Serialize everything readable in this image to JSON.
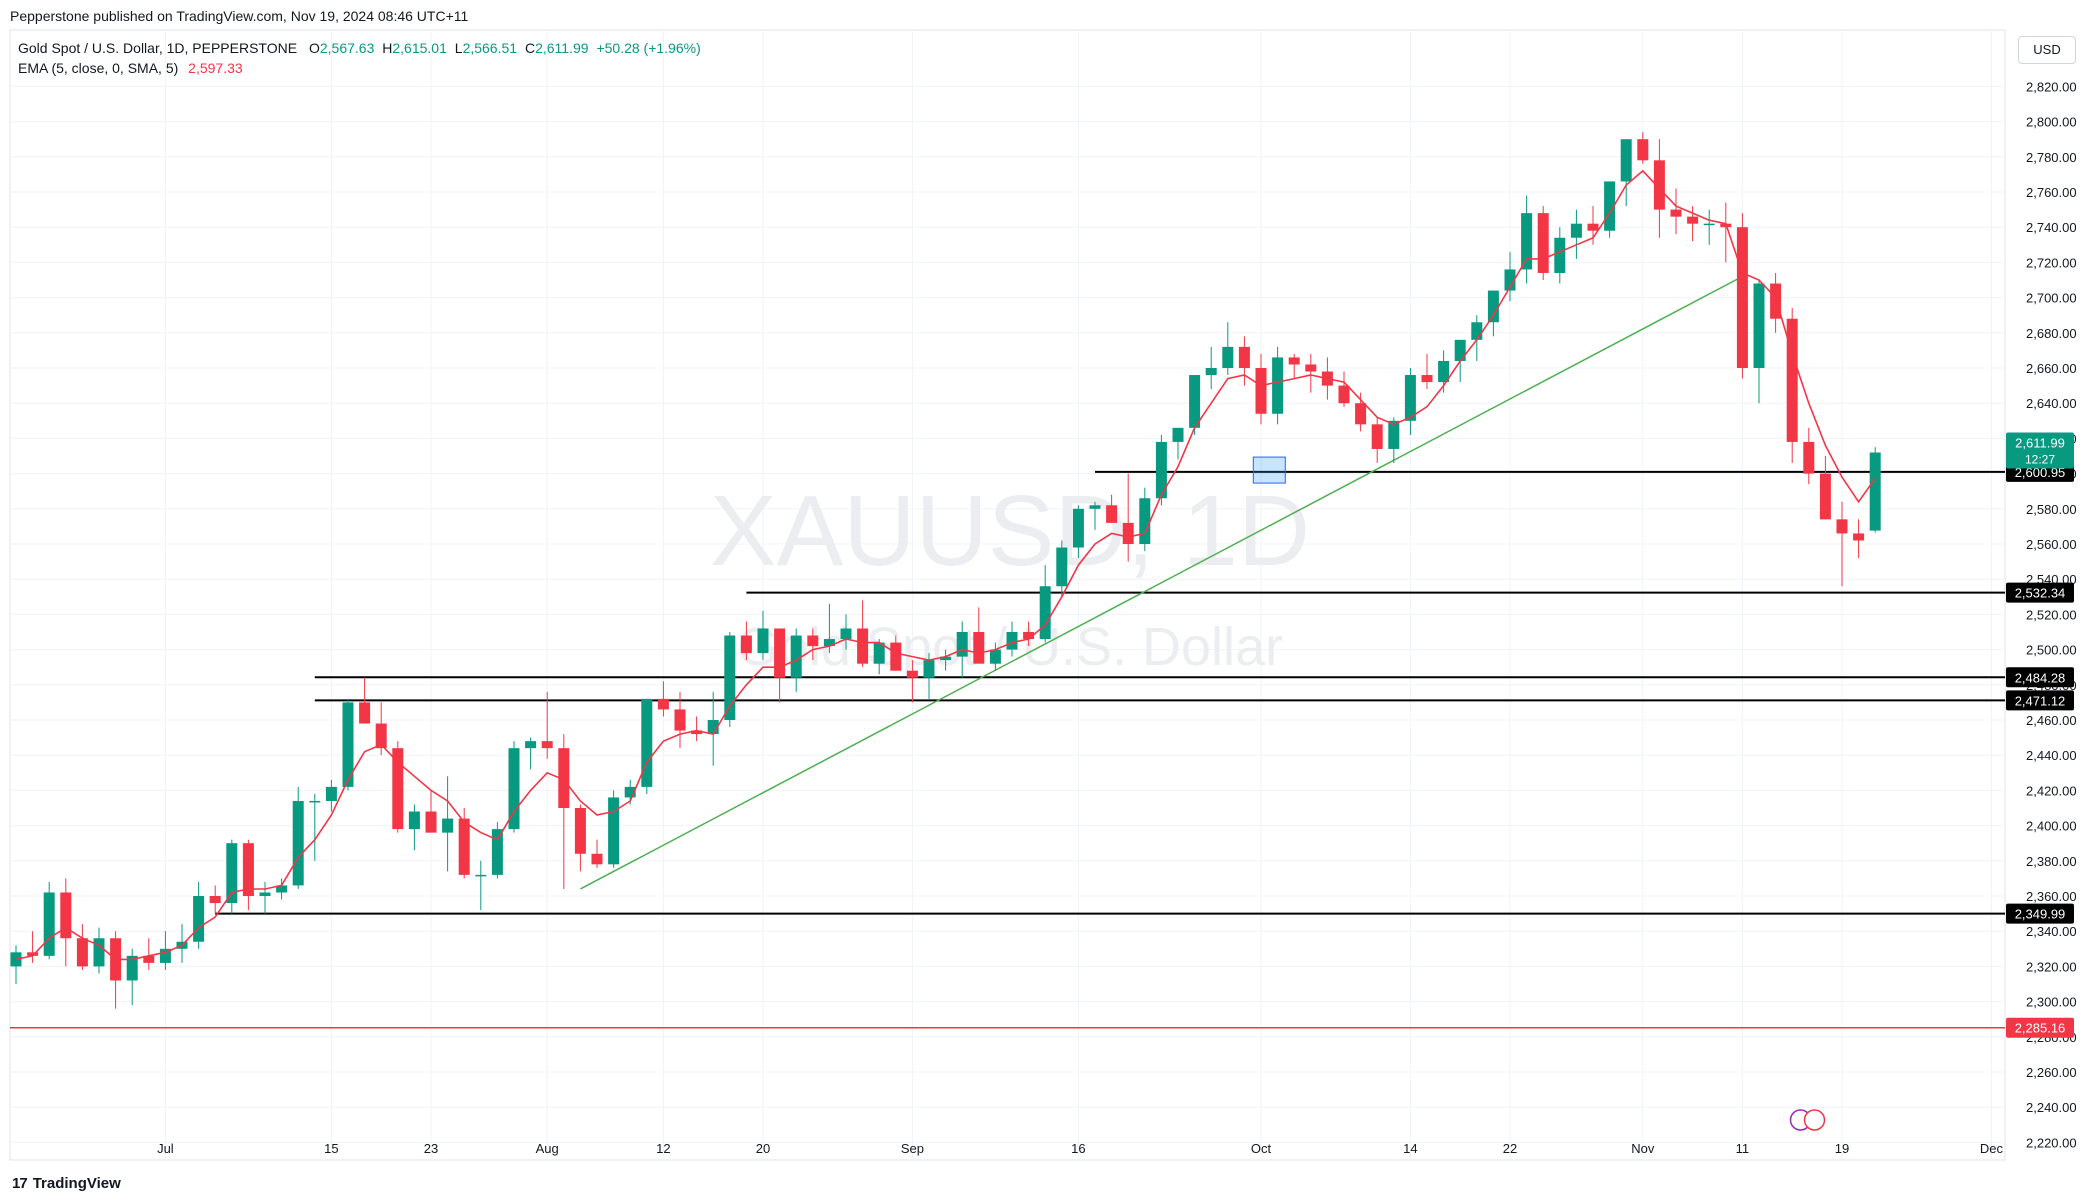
{
  "header": {
    "published": "Pepperstone published on TradingView.com, Nov 19, 2024 08:46 UTC+11"
  },
  "legend": {
    "symbol_line": "Gold Spot / U.S. Dollar, 1D, PEPPERSTONE",
    "o_label": "O",
    "o_value": "2,567.63",
    "h_label": "H",
    "h_value": "2,615.01",
    "l_label": "L",
    "l_value": "2,566.51",
    "c_label": "C",
    "c_value": "2,611.99",
    "change": "+50.28 (+1.96%)",
    "ema_label": "EMA (5, close, 0, SMA, 5)",
    "ema_value": "2,597.33"
  },
  "currency": "USD",
  "watermark": {
    "symbol": "XAUUSD, 1D",
    "name": "Gold Spot / U.S. Dollar"
  },
  "footer": {
    "logo_text": "TradingView"
  },
  "colors": {
    "up": "#089981",
    "down": "#f23645",
    "ema": "#f23645",
    "trend": "#4caf50",
    "level": "#000000",
    "red_level": "#f23645"
  },
  "chart_data": {
    "type": "candlestick",
    "y_ticks": [
      2220,
      2240,
      2260,
      2280,
      2300,
      2320,
      2340,
      2360,
      2380,
      2400,
      2420,
      2440,
      2460,
      2480,
      2500,
      2520,
      2540,
      2560,
      2580,
      2600,
      2620,
      2640,
      2660,
      2680,
      2700,
      2720,
      2740,
      2760,
      2780,
      2800,
      2820
    ],
    "y_tick_labels": [
      "2,220.00",
      "2,240.00",
      "2,260.00",
      "2,280.00",
      "2,300.00",
      "2,320.00",
      "2,340.00",
      "2,360.00",
      "2,380.00",
      "2,400.00",
      "2,420.00",
      "2,440.00",
      "2,460.00",
      "2,480.00",
      "2,500.00",
      "2,520.00",
      "2,540.00",
      "2,560.00",
      "2,580.00",
      "2,600.00",
      "2,620.00",
      "2,640.00",
      "2,660.00",
      "2,680.00",
      "2,700.00",
      "2,720.00",
      "2,740.00",
      "2,760.00",
      "2,780.00",
      "2,800.00",
      "2,820.00"
    ],
    "x_ticks": [
      {
        "label": "Jul",
        "i": 9
      },
      {
        "label": "15",
        "i": 19
      },
      {
        "label": "23",
        "i": 25
      },
      {
        "label": "Aug",
        "i": 32
      },
      {
        "label": "12",
        "i": 39
      },
      {
        "label": "20",
        "i": 45
      },
      {
        "label": "Sep",
        "i": 54
      },
      {
        "label": "16",
        "i": 64
      },
      {
        "label": "Oct",
        "i": 75
      },
      {
        "label": "14",
        "i": 84
      },
      {
        "label": "22",
        "i": 90
      },
      {
        "label": "Nov",
        "i": 98
      },
      {
        "label": "11",
        "i": 104
      },
      {
        "label": "19",
        "i": 110
      },
      {
        "label": "Dec",
        "i": 119
      }
    ],
    "ylim": [
      2210,
      2835
    ],
    "candles": [
      [
        2320,
        2332,
        2310,
        2328
      ],
      [
        2328,
        2340,
        2322,
        2326
      ],
      [
        2326,
        2368,
        2324,
        2362
      ],
      [
        2362,
        2370,
        2320,
        2336
      ],
      [
        2336,
        2344,
        2318,
        2320
      ],
      [
        2320,
        2342,
        2316,
        2336
      ],
      [
        2336,
        2340,
        2296,
        2312
      ],
      [
        2312,
        2330,
        2298,
        2326
      ],
      [
        2326,
        2336,
        2318,
        2322
      ],
      [
        2322,
        2340,
        2318,
        2330
      ],
      [
        2330,
        2344,
        2322,
        2334
      ],
      [
        2334,
        2368,
        2330,
        2360
      ],
      [
        2360,
        2366,
        2350,
        2356
      ],
      [
        2356,
        2392,
        2350,
        2390
      ],
      [
        2390,
        2392,
        2352,
        2360
      ],
      [
        2360,
        2368,
        2350,
        2362
      ],
      [
        2362,
        2370,
        2358,
        2366
      ],
      [
        2366,
        2422,
        2364,
        2414
      ],
      [
        2414,
        2418,
        2380,
        2414
      ],
      [
        2414,
        2426,
        2408,
        2422
      ],
      [
        2422,
        2472,
        2420,
        2470
      ],
      [
        2470,
        2484,
        2458,
        2458
      ],
      [
        2458,
        2470,
        2440,
        2444
      ],
      [
        2444,
        2448,
        2396,
        2398
      ],
      [
        2398,
        2412,
        2386,
        2408
      ],
      [
        2408,
        2420,
        2396,
        2396
      ],
      [
        2396,
        2428,
        2374,
        2404
      ],
      [
        2404,
        2410,
        2370,
        2372
      ],
      [
        2372,
        2380,
        2352,
        2372
      ],
      [
        2372,
        2402,
        2370,
        2398
      ],
      [
        2398,
        2448,
        2396,
        2444
      ],
      [
        2444,
        2450,
        2432,
        2448
      ],
      [
        2448,
        2476,
        2438,
        2444
      ],
      [
        2444,
        2452,
        2364,
        2410
      ],
      [
        2410,
        2412,
        2374,
        2384
      ],
      [
        2384,
        2392,
        2376,
        2378
      ],
      [
        2378,
        2420,
        2376,
        2416
      ],
      [
        2416,
        2426,
        2412,
        2422
      ],
      [
        2422,
        2472,
        2418,
        2472
      ],
      [
        2472,
        2482,
        2462,
        2466
      ],
      [
        2466,
        2476,
        2444,
        2454
      ],
      [
        2454,
        2462,
        2448,
        2452
      ],
      [
        2452,
        2476,
        2434,
        2460
      ],
      [
        2460,
        2510,
        2456,
        2508
      ],
      [
        2508,
        2516,
        2494,
        2498
      ],
      [
        2498,
        2522,
        2494,
        2512
      ],
      [
        2512,
        2512,
        2470,
        2484
      ],
      [
        2484,
        2512,
        2476,
        2508
      ],
      [
        2508,
        2512,
        2494,
        2502
      ],
      [
        2502,
        2526,
        2498,
        2506
      ],
      [
        2506,
        2520,
        2500,
        2512
      ],
      [
        2512,
        2528,
        2490,
        2492
      ],
      [
        2492,
        2506,
        2486,
        2504
      ],
      [
        2504,
        2508,
        2488,
        2488
      ],
      [
        2488,
        2494,
        2470,
        2484
      ],
      [
        2484,
        2498,
        2472,
        2494
      ],
      [
        2494,
        2500,
        2488,
        2496
      ],
      [
        2496,
        2516,
        2484,
        2510
      ],
      [
        2510,
        2524,
        2494,
        2492
      ],
      [
        2492,
        2504,
        2488,
        2500
      ],
      [
        2500,
        2516,
        2496,
        2510
      ],
      [
        2510,
        2516,
        2502,
        2506
      ],
      [
        2506,
        2548,
        2504,
        2536
      ],
      [
        2536,
        2562,
        2530,
        2558
      ],
      [
        2558,
        2582,
        2552,
        2580
      ],
      [
        2580,
        2584,
        2568,
        2582
      ],
      [
        2582,
        2588,
        2572,
        2572
      ],
      [
        2572,
        2600,
        2550,
        2560
      ],
      [
        2560,
        2592,
        2556,
        2586
      ],
      [
        2586,
        2622,
        2582,
        2618
      ],
      [
        2618,
        2626,
        2608,
        2626
      ],
      [
        2626,
        2656,
        2622,
        2656
      ],
      [
        2656,
        2672,
        2648,
        2660
      ],
      [
        2660,
        2686,
        2656,
        2672
      ],
      [
        2672,
        2678,
        2650,
        2660
      ],
      [
        2660,
        2668,
        2628,
        2634
      ],
      [
        2634,
        2672,
        2628,
        2666
      ],
      [
        2666,
        2668,
        2654,
        2662
      ],
      [
        2662,
        2668,
        2646,
        2658
      ],
      [
        2658,
        2666,
        2642,
        2650
      ],
      [
        2650,
        2658,
        2638,
        2640
      ],
      [
        2640,
        2646,
        2624,
        2628
      ],
      [
        2628,
        2632,
        2606,
        2614
      ],
      [
        2614,
        2632,
        2606,
        2630
      ],
      [
        2630,
        2660,
        2622,
        2656
      ],
      [
        2656,
        2668,
        2648,
        2652
      ],
      [
        2652,
        2670,
        2646,
        2664
      ],
      [
        2664,
        2676,
        2652,
        2676
      ],
      [
        2676,
        2690,
        2664,
        2686
      ],
      [
        2686,
        2704,
        2678,
        2704
      ],
      [
        2704,
        2726,
        2698,
        2716
      ],
      [
        2716,
        2758,
        2708,
        2748
      ],
      [
        2748,
        2752,
        2710,
        2714
      ],
      [
        2714,
        2740,
        2708,
        2734
      ],
      [
        2734,
        2750,
        2722,
        2742
      ],
      [
        2742,
        2752,
        2730,
        2738
      ],
      [
        2738,
        2760,
        2734,
        2766
      ],
      [
        2766,
        2790,
        2752,
        2790
      ],
      [
        2790,
        2794,
        2776,
        2778
      ],
      [
        2778,
        2790,
        2734,
        2750
      ],
      [
        2750,
        2762,
        2736,
        2746
      ],
      [
        2746,
        2752,
        2732,
        2742
      ],
      [
        2742,
        2750,
        2730,
        2742
      ],
      [
        2742,
        2754,
        2720,
        2740
      ],
      [
        2740,
        2748,
        2654,
        2660
      ],
      [
        2660,
        2710,
        2640,
        2708
      ],
      [
        2708,
        2714,
        2680,
        2688
      ],
      [
        2688,
        2694,
        2606,
        2618
      ],
      [
        2618,
        2626,
        2594,
        2600
      ],
      [
        2600,
        2610,
        2574,
        2574
      ],
      [
        2574,
        2584,
        2536,
        2566
      ],
      [
        2566,
        2574,
        2552,
        2562
      ],
      [
        2567.63,
        2615.01,
        2566.51,
        2611.99
      ]
    ],
    "ema": [
      2324,
      2326,
      2336,
      2342,
      2336,
      2332,
      2324,
      2324,
      2326,
      2328,
      2332,
      2342,
      2348,
      2362,
      2364,
      2364,
      2366,
      2382,
      2392,
      2406,
      2426,
      2442,
      2446,
      2436,
      2428,
      2420,
      2414,
      2402,
      2396,
      2392,
      2408,
      2420,
      2430,
      2426,
      2414,
      2406,
      2408,
      2414,
      2436,
      2448,
      2452,
      2454,
      2452,
      2468,
      2480,
      2490,
      2490,
      2494,
      2500,
      2502,
      2506,
      2504,
      2504,
      2498,
      2496,
      2494,
      2496,
      2500,
      2498,
      2500,
      2504,
      2506,
      2514,
      2530,
      2548,
      2560,
      2566,
      2564,
      2566,
      2588,
      2604,
      2626,
      2640,
      2654,
      2656,
      2650,
      2652,
      2654,
      2656,
      2654,
      2652,
      2642,
      2632,
      2628,
      2632,
      2638,
      2650,
      2664,
      2676,
      2690,
      2706,
      2722,
      2722,
      2726,
      2730,
      2734,
      2748,
      2764,
      2772,
      2762,
      2752,
      2748,
      2744,
      2742,
      2714,
      2710,
      2700,
      2668,
      2640,
      2616,
      2598,
      2584,
      2597.33
    ],
    "levels": [
      {
        "value": 2600.95,
        "label": "2,600.95",
        "start": 65
      },
      {
        "value": 2532.34,
        "label": "2,532.34",
        "start": 44
      },
      {
        "value": 2484.28,
        "label": "2,484.28",
        "start": 18
      },
      {
        "value": 2471.12,
        "label": "2,471.12",
        "start": 18
      },
      {
        "value": 2349.99,
        "label": "2,349.99",
        "start": 12
      }
    ],
    "red_level": {
      "value": 2285.16,
      "label": "2,285.16"
    },
    "trendline": [
      [
        34,
        2364
      ],
      [
        104,
        2712
      ]
    ],
    "last_price": {
      "value": 2611.99,
      "label": "2,611.99",
      "countdown": "12:27"
    }
  }
}
